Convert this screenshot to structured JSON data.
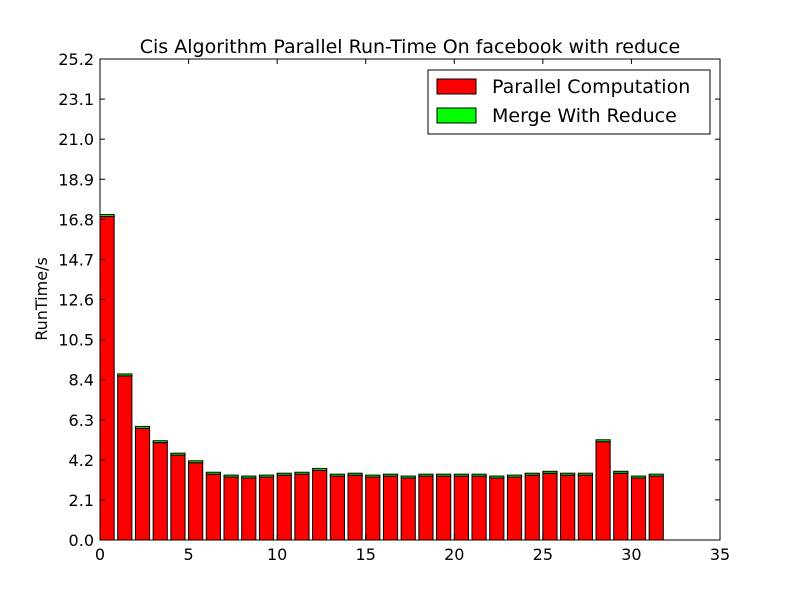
{
  "chart_data": {
    "type": "bar",
    "title": "Cis Algorithm Parallel Run-Time On facebook with reduce",
    "xlabel": "",
    "ylabel": "RunTime/s",
    "xlim": [
      0,
      35
    ],
    "ylim": [
      0,
      25.2
    ],
    "xticks": [
      "0",
      "5",
      "10",
      "15",
      "20",
      "25",
      "30",
      "35"
    ],
    "yticks": [
      "0.0",
      "2.1",
      "4.2",
      "6.3",
      "8.4",
      "10.5",
      "12.6",
      "14.7",
      "16.8",
      "18.9",
      "21.0",
      "23.1",
      "25.2"
    ],
    "grid": false,
    "legend_position": "top-right",
    "stacked": true,
    "x": [
      0,
      1,
      2,
      3,
      4,
      5,
      6,
      7,
      8,
      9,
      10,
      11,
      12,
      13,
      14,
      15,
      16,
      17,
      18,
      19,
      20,
      21,
      22,
      23,
      24,
      25,
      26,
      27,
      28,
      29,
      30,
      31
    ],
    "series": [
      {
        "name": "Parallel Computation",
        "color": "#ff0000",
        "values": [
          16.95,
          8.6,
          5.85,
          5.1,
          4.45,
          4.05,
          3.45,
          3.3,
          3.25,
          3.3,
          3.4,
          3.45,
          3.65,
          3.35,
          3.4,
          3.3,
          3.35,
          3.25,
          3.35,
          3.35,
          3.35,
          3.35,
          3.25,
          3.3,
          3.4,
          3.5,
          3.4,
          3.4,
          5.15,
          3.5,
          3.25,
          3.35
        ]
      },
      {
        "name": "Merge With Reduce",
        "color": "#00ff00",
        "values": [
          0.1,
          0.1,
          0.1,
          0.1,
          0.1,
          0.1,
          0.1,
          0.1,
          0.1,
          0.1,
          0.1,
          0.1,
          0.1,
          0.1,
          0.1,
          0.1,
          0.1,
          0.1,
          0.1,
          0.1,
          0.1,
          0.1,
          0.1,
          0.1,
          0.1,
          0.1,
          0.1,
          0.1,
          0.1,
          0.1,
          0.1,
          0.1
        ]
      }
    ]
  }
}
